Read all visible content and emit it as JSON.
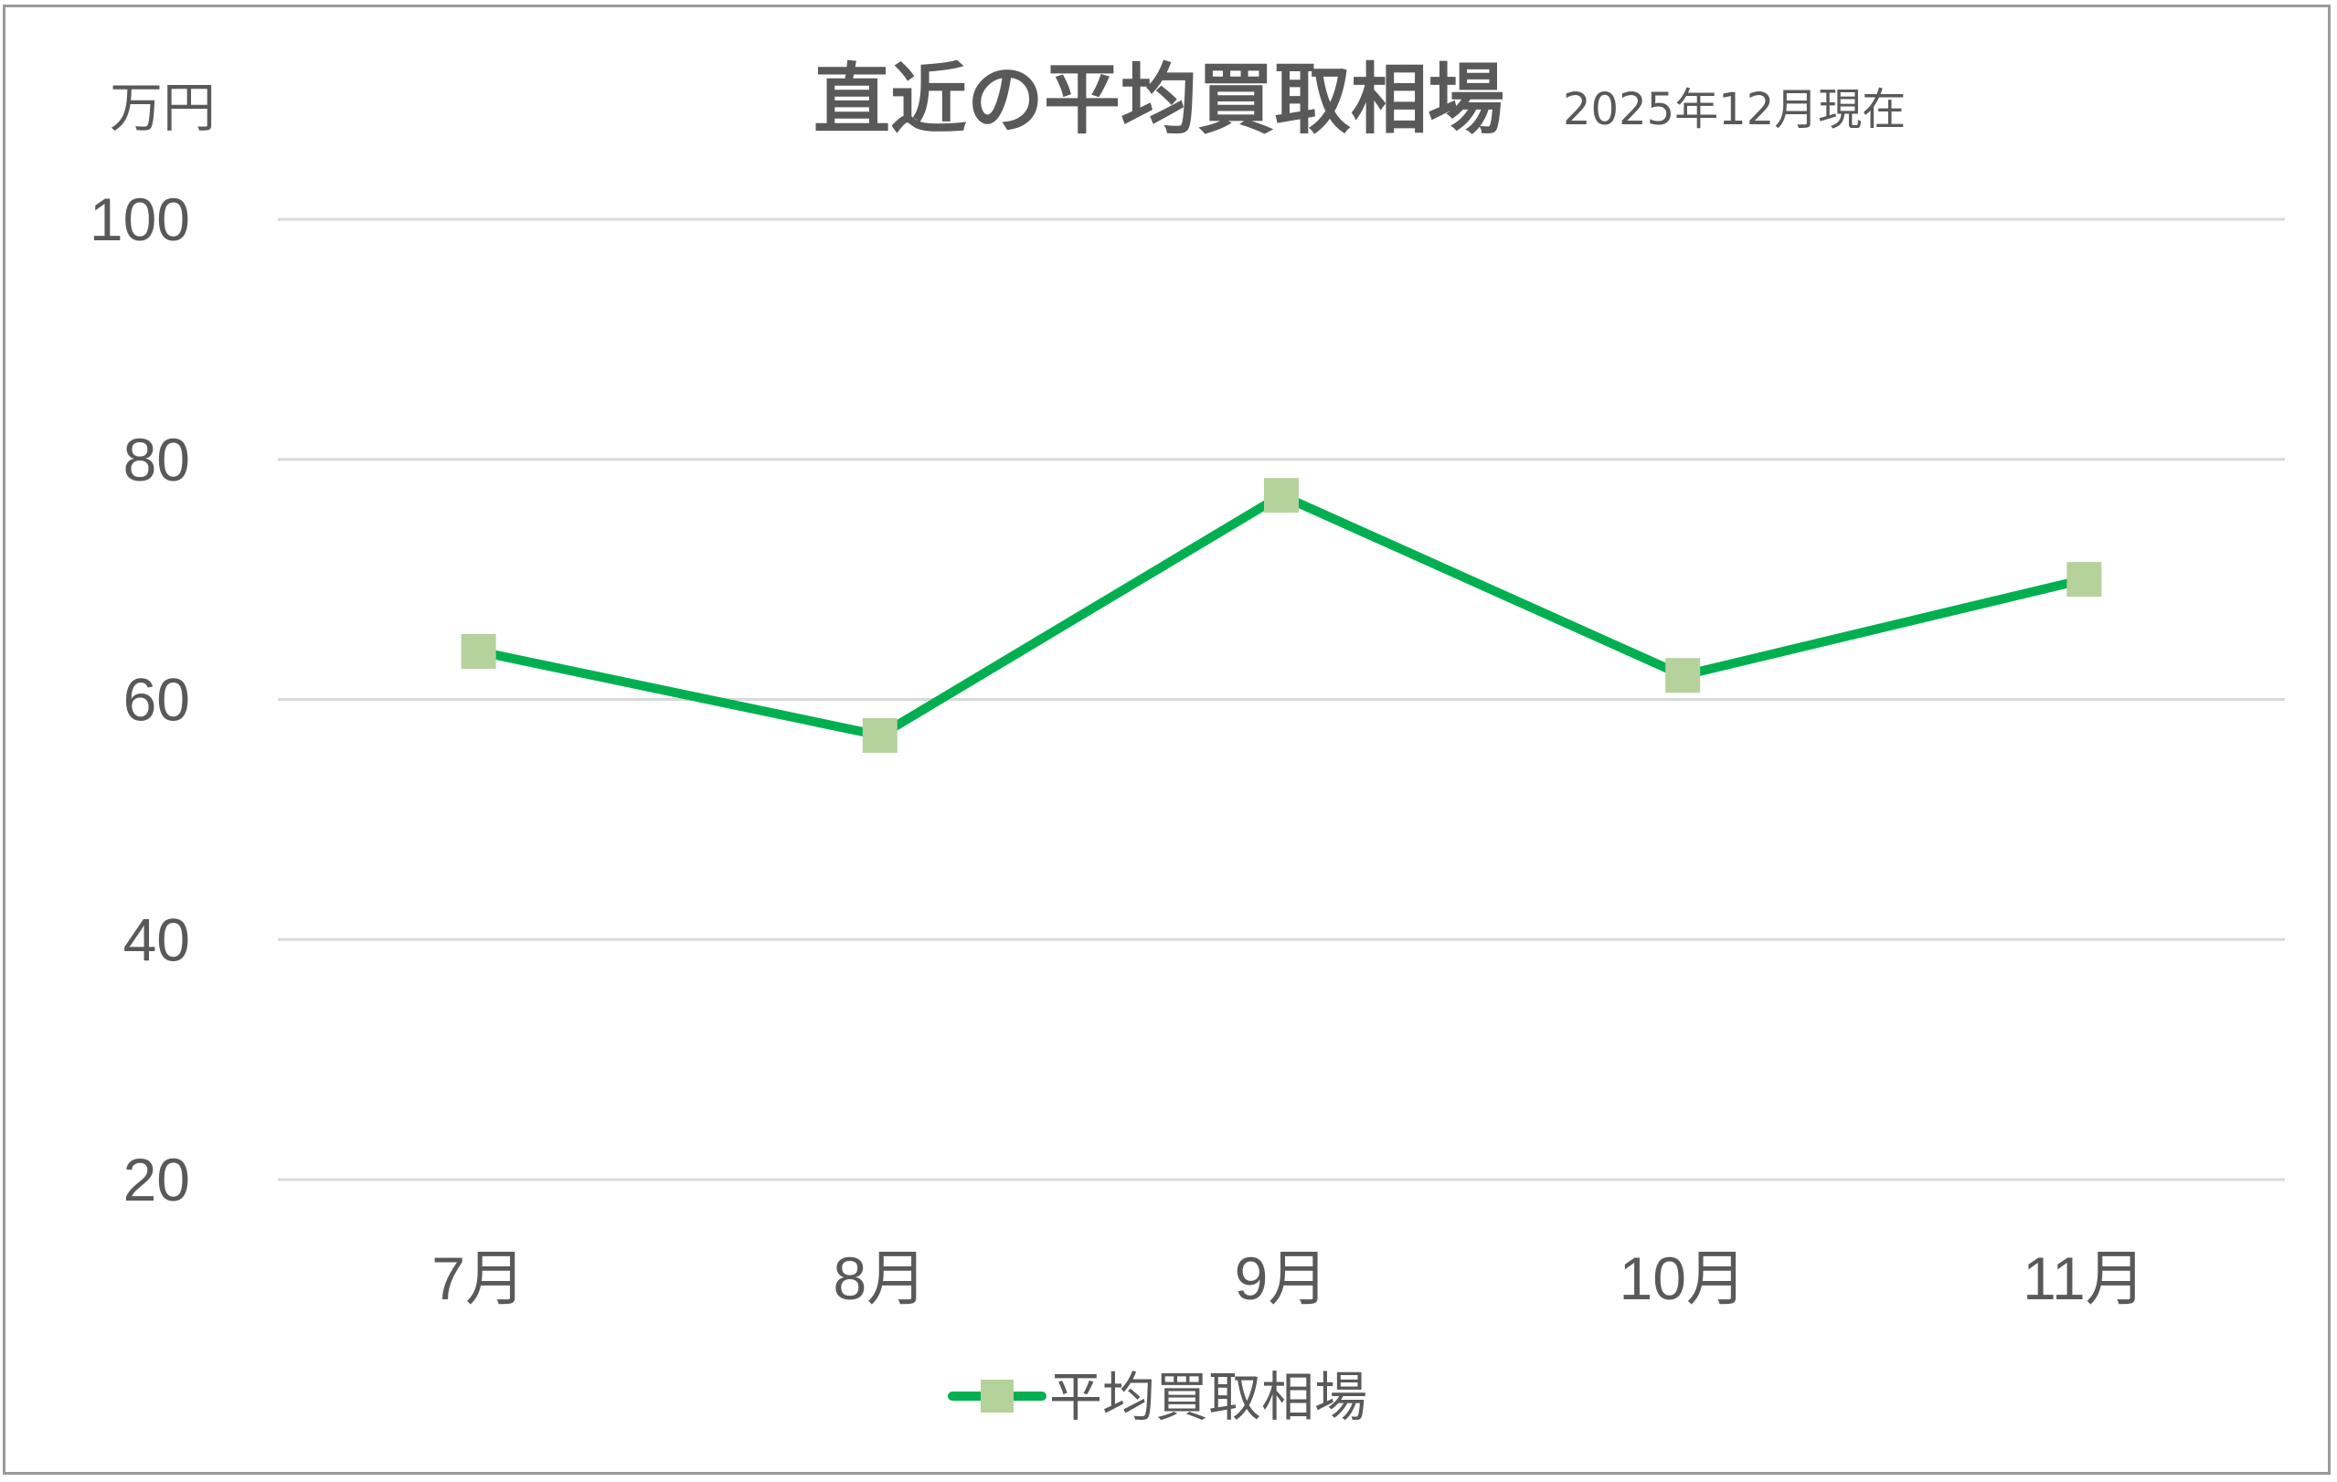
{
  "chart_data": {
    "type": "line",
    "title": "直近の平均買取相場",
    "subtitle": "2025年12月現在",
    "ylabel": "万円",
    "xlabel": "",
    "categories": [
      "7月",
      "8月",
      "9月",
      "10月",
      "11月"
    ],
    "series": [
      {
        "name": "平均買取相場",
        "values": [
          64,
          57,
          77,
          62,
          70
        ]
      }
    ],
    "ylim": [
      20,
      100
    ],
    "yticks": [
      "20",
      "40",
      "60",
      "80",
      "100"
    ],
    "grid": true,
    "legend": "bottom",
    "colors": {
      "line": "#00b050",
      "marker": "#b5d29b",
      "grid": "#d9d9d9",
      "text": "#595959"
    }
  }
}
